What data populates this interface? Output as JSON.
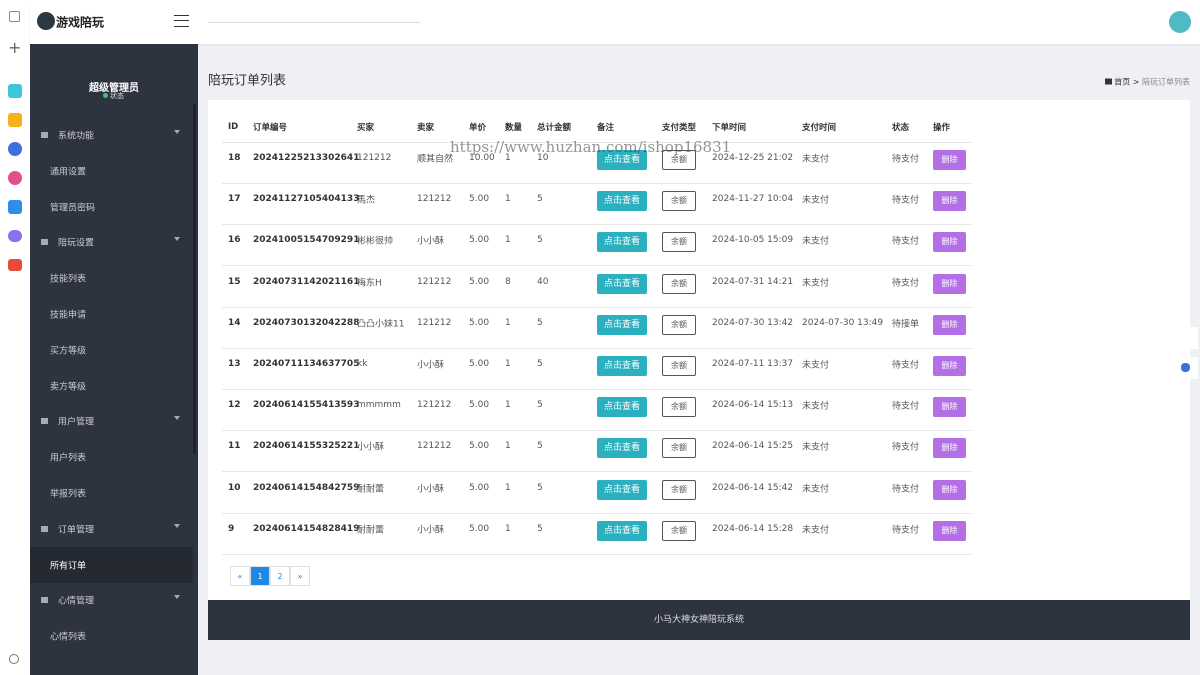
{
  "header": {
    "logo_text": "游戏陪玩"
  },
  "sidebar": {
    "user_name": "超级管理员",
    "user_status": "状态",
    "menu": [
      {
        "title": "系统功能",
        "items": [
          {
            "label": "通用设置"
          },
          {
            "label": "管理员密码"
          }
        ]
      },
      {
        "title": "陪玩设置",
        "items": [
          {
            "label": "技能列表"
          },
          {
            "label": "技能申请"
          },
          {
            "label": "买方等级"
          },
          {
            "label": "卖方等级"
          }
        ]
      },
      {
        "title": "用户管理",
        "items": [
          {
            "label": "用户列表"
          },
          {
            "label": "举报列表"
          }
        ]
      },
      {
        "title": "订单管理",
        "items": [
          {
            "label": "所有订单",
            "active": true
          }
        ]
      },
      {
        "title": "心情管理",
        "items": [
          {
            "label": "心情列表"
          }
        ]
      }
    ]
  },
  "page": {
    "title": "陪玩订单列表",
    "breadcrumb": {
      "items": [
        "首页",
        "陪玩订单列表"
      ],
      "separator": ">"
    }
  },
  "table": {
    "columns": [
      "ID",
      "订单编号",
      "买家",
      "卖家",
      "单价",
      "数量",
      "总计金额",
      "备注",
      "支付类型",
      "下单时间",
      "支付时间",
      "状态",
      "操作"
    ],
    "rows": [
      [
        "18",
        "20241225213302641",
        "121212",
        "顺其自然",
        "10.00",
        "1",
        "10",
        "点击查看",
        "余额",
        "2024-12-25 21:02",
        "未支付",
        "待支付",
        "删除"
      ],
      [
        "17",
        "20241127105404133",
        "馬杰",
        "121212",
        "5.00",
        "1",
        "5",
        "点击查看",
        "余额",
        "2024-11-27 10:04",
        "未支付",
        "待支付",
        "删除"
      ],
      [
        "16",
        "20241005154709291",
        "彬彬很帅",
        "小小酥",
        "5.00",
        "1",
        "5",
        "点击查看",
        "余额",
        "2024-10-05 15:09",
        "未支付",
        "待支付",
        "删除"
      ],
      [
        "15",
        "20240731142021161",
        "梅东H",
        "121212",
        "5.00",
        "8",
        "40",
        "点击查看",
        "余额",
        "2024-07-31 14:21",
        "未支付",
        "待支付",
        "删除"
      ],
      [
        "14",
        "20240730132042288",
        "凸凸小妹11",
        "121212",
        "5.00",
        "1",
        "5",
        "点击查看",
        "余额",
        "2024-07-30 13:42",
        "2024-07-30 13:49",
        "待接单",
        "删除"
      ],
      [
        "13",
        "20240711134637705",
        "kk",
        "小小酥",
        "5.00",
        "1",
        "5",
        "点击查看",
        "余额",
        "2024-07-11 13:37",
        "未支付",
        "待支付",
        "删除"
      ],
      [
        "12",
        "20240614155413593",
        "mmmmm",
        "121212",
        "5.00",
        "1",
        "5",
        "点击查看",
        "余额",
        "2024-06-14 15:13",
        "未支付",
        "待支付",
        "删除"
      ],
      [
        "11",
        "20240614155325221",
        "小小酥",
        "121212",
        "5.00",
        "1",
        "5",
        "点击查看",
        "余额",
        "2024-06-14 15:25",
        "未支付",
        "待支付",
        "删除"
      ],
      [
        "10",
        "20240614154842759",
        "耐耐蕾",
        "小小酥",
        "5.00",
        "1",
        "5",
        "点击查看",
        "余额",
        "2024-06-14 15:42",
        "未支付",
        "待支付",
        "删除"
      ],
      [
        "9",
        "20240614154828419",
        "耐耐蕾",
        "小小酥",
        "5.00",
        "1",
        "5",
        "点击查看",
        "余额",
        "2024-06-14 15:28",
        "未支付",
        "待支付",
        "删除"
      ]
    ]
  },
  "pagination": [
    "«",
    "1",
    "2",
    "»"
  ],
  "footer": "小马大神女神陪玩系统",
  "watermark": "https://www.huzhan.com/ishop16831"
}
